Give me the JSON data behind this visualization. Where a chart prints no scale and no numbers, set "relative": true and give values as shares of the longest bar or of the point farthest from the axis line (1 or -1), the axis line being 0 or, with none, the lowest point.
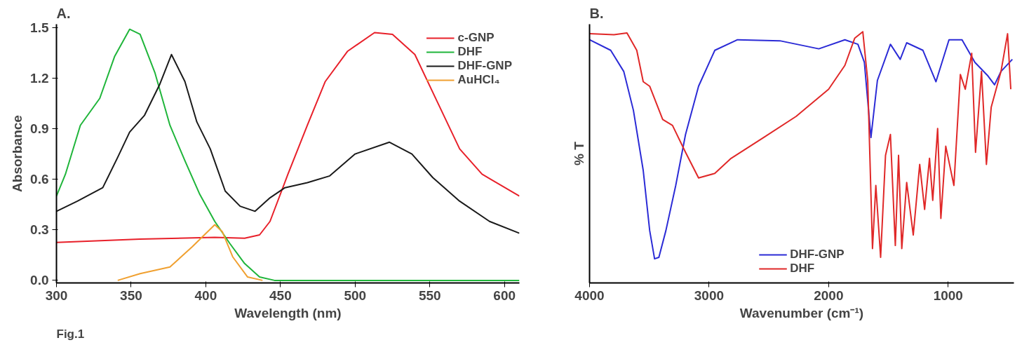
{
  "chart_data": [
    {
      "type": "line",
      "title": "A.",
      "xlabel": "Wavelength (nm)",
      "ylabel": "Absorbance",
      "annotations": [
        "Fig.1"
      ],
      "xlim": [
        300,
        610
      ],
      "ylim": [
        -0.015,
        1.52
      ],
      "xticks": [
        300,
        350,
        400,
        450,
        500,
        550,
        600
      ],
      "yticks": [
        {
          "value": 0,
          "label": "0.0"
        },
        {
          "value": 0.3,
          "label": "0.3"
        },
        {
          "value": 0.6,
          "label": "0.6"
        },
        {
          "value": 0.9,
          "label": "0.9"
        },
        {
          "value": 1.2,
          "label": "1.2"
        },
        {
          "value": 1.5,
          "label": "1.5"
        }
      ],
      "grid": false,
      "legend": "top right",
      "series": [
        {
          "name": "c-GNP",
          "color": "#e8202a",
          "x": [
            300,
            356,
            406,
            426,
            436,
            443,
            455,
            468,
            480,
            495,
            513,
            525,
            540,
            555,
            570,
            585,
            610
          ],
          "values": [
            0.225,
            0.245,
            0.255,
            0.25,
            0.27,
            0.35,
            0.63,
            0.92,
            1.18,
            1.36,
            1.47,
            1.46,
            1.34,
            1.06,
            0.78,
            0.63,
            0.5
          ]
        },
        {
          "name": "DHF",
          "color": "#1fb53a",
          "x": [
            300,
            306,
            316,
            329,
            339,
            349,
            356,
            366,
            376,
            386,
            396,
            406,
            416,
            426,
            436,
            446,
            480,
            610
          ],
          "values": [
            0.5,
            0.63,
            0.92,
            1.08,
            1.33,
            1.49,
            1.46,
            1.23,
            0.92,
            0.71,
            0.51,
            0.35,
            0.22,
            0.1,
            0.02,
            0.0,
            0.0,
            0.0
          ]
        },
        {
          "name": "DHF-GNP",
          "color": "#1a1a1a",
          "x": [
            300,
            314,
            331,
            341,
            349,
            359,
            369,
            377,
            386,
            394,
            403,
            413,
            423,
            433,
            443,
            453,
            468,
            483,
            500,
            523,
            538,
            552,
            570,
            590,
            610
          ],
          "values": [
            0.41,
            0.47,
            0.55,
            0.73,
            0.88,
            0.98,
            1.16,
            1.34,
            1.18,
            0.94,
            0.78,
            0.53,
            0.44,
            0.41,
            0.49,
            0.55,
            0.58,
            0.62,
            0.75,
            0.82,
            0.75,
            0.61,
            0.47,
            0.35,
            0.28
          ]
        },
        {
          "name": "AuHCl₄",
          "color": "#f0a030",
          "x": [
            341,
            356,
            376,
            391,
            406,
            411,
            418,
            428,
            438
          ],
          "values": [
            0.0,
            0.04,
            0.08,
            0.2,
            0.33,
            0.29,
            0.14,
            0.02,
            0.0
          ]
        }
      ]
    },
    {
      "type": "line",
      "title": "B.",
      "xlabel": "Wavenumber (cm⁻¹)",
      "ylabel": "% T",
      "relative": true,
      "xlim": [
        4000,
        450
      ],
      "xticks": [
        4000,
        3000,
        2000,
        1000
      ],
      "grid": false,
      "legend": "bottom",
      "series": [
        {
          "name": "DHF-GNP",
          "color": "#2b2bd6",
          "x": [
            4000,
            3823,
            3714,
            3633,
            3551,
            3497,
            3456,
            3420,
            3361,
            3279,
            3197,
            3088,
            2952,
            2762,
            2408,
            2082,
            1864,
            1755,
            1701,
            1646,
            1592,
            1483,
            1401,
            1347,
            1211,
            1102,
            993,
            884,
            776,
            667,
            612,
            558,
            463
          ],
          "values": [
            0.968,
            0.926,
            0.842,
            0.687,
            0.448,
            0.209,
            0.096,
            0.102,
            0.209,
            0.388,
            0.591,
            0.783,
            0.926,
            0.968,
            0.964,
            0.932,
            0.968,
            0.95,
            0.878,
            0.579,
            0.806,
            0.95,
            0.89,
            0.956,
            0.926,
            0.801,
            0.968,
            0.968,
            0.878,
            0.824,
            0.789,
            0.842,
            0.89
          ]
        },
        {
          "name": "DHF",
          "color": "#e02828",
          "x": [
            4000,
            3796,
            3687,
            3605,
            3551,
            3497,
            3388,
            3306,
            3197,
            3088,
            2952,
            2816,
            2544,
            2272,
            2000,
            1864,
            1782,
            1714,
            1673,
            1633,
            1605,
            1565,
            1524,
            1483,
            1442,
            1415,
            1388,
            1347,
            1292,
            1238,
            1197,
            1156,
            1129,
            1088,
            1061,
            1020,
            952,
            898,
            857,
            803,
            771,
            721,
            680,
            640,
            558,
            503,
            476
          ],
          "values": [
            0.992,
            0.988,
            0.995,
            0.926,
            0.801,
            0.783,
            0.651,
            0.627,
            0.52,
            0.418,
            0.436,
            0.496,
            0.579,
            0.663,
            0.771,
            0.866,
            0.974,
            1.0,
            0.806,
            0.137,
            0.388,
            0.102,
            0.508,
            0.591,
            0.149,
            0.508,
            0.137,
            0.4,
            0.191,
            0.472,
            0.293,
            0.496,
            0.329,
            0.615,
            0.257,
            0.544,
            0.388,
            0.83,
            0.771,
            0.914,
            0.52,
            0.842,
            0.472,
            0.699,
            0.842,
            0.992,
            0.771
          ]
        }
      ]
    }
  ]
}
